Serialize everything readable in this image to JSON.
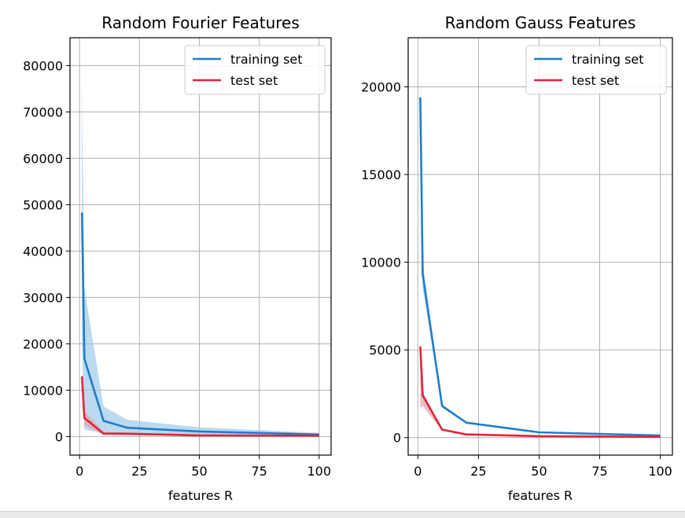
{
  "chart_data": [
    {
      "type": "line",
      "title": "Random Fourier Features",
      "xlabel": "features R",
      "ylabel": "",
      "xlim": [
        -4,
        105
      ],
      "ylim": [
        -4000,
        86000
      ],
      "xticks": [
        0,
        25,
        50,
        75,
        100
      ],
      "yticks": [
        0,
        10000,
        20000,
        30000,
        40000,
        50000,
        60000,
        70000,
        80000
      ],
      "grid": true,
      "legend_position": "top-right",
      "x": [
        1,
        2,
        10,
        20,
        50,
        100
      ],
      "series": [
        {
          "name": "training set",
          "color": "#1f7dc8",
          "band_color": "#9ecae9",
          "values": [
            48300,
            16800,
            3400,
            1900,
            1100,
            450
          ],
          "lower": [
            20000,
            1500,
            800,
            600,
            400,
            200
          ],
          "upper": [
            76000,
            32000,
            6500,
            3600,
            2000,
            800
          ]
        },
        {
          "name": "test set",
          "color": "#e0243a",
          "band_color": "#e8a0a8",
          "values": [
            13000,
            4000,
            650,
            600,
            250,
            180
          ],
          "lower": [
            9000,
            2400,
            350,
            300,
            150,
            100
          ],
          "upper": [
            13500,
            5500,
            1000,
            900,
            400,
            300
          ]
        }
      ]
    },
    {
      "type": "line",
      "title": "Random Gauss Features",
      "xlabel": "features R",
      "ylabel": "",
      "xlim": [
        -4,
        105
      ],
      "ylim": [
        -1000,
        22800
      ],
      "xticks": [
        0,
        25,
        50,
        75,
        100
      ],
      "yticks": [
        0,
        5000,
        10000,
        15000,
        20000
      ],
      "grid": true,
      "legend_position": "top-right",
      "x": [
        1,
        2,
        10,
        20,
        50,
        100
      ],
      "series": [
        {
          "name": "training set",
          "color": "#1f7dc8",
          "band_color": "#9ecae9",
          "values": [
            19400,
            9300,
            1800,
            850,
            300,
            120
          ],
          "lower": [
            19300,
            8500,
            1700,
            800,
            280,
            100
          ],
          "upper": [
            20900,
            10000,
            1900,
            900,
            320,
            140
          ]
        },
        {
          "name": "test set",
          "color": "#e0243a",
          "band_color": "#e8a0a8",
          "values": [
            5200,
            2400,
            450,
            180,
            80,
            40
          ],
          "lower": [
            1700,
            1800,
            400,
            150,
            60,
            30
          ],
          "upper": [
            5300,
            2600,
            500,
            220,
            100,
            50
          ]
        }
      ]
    }
  ]
}
